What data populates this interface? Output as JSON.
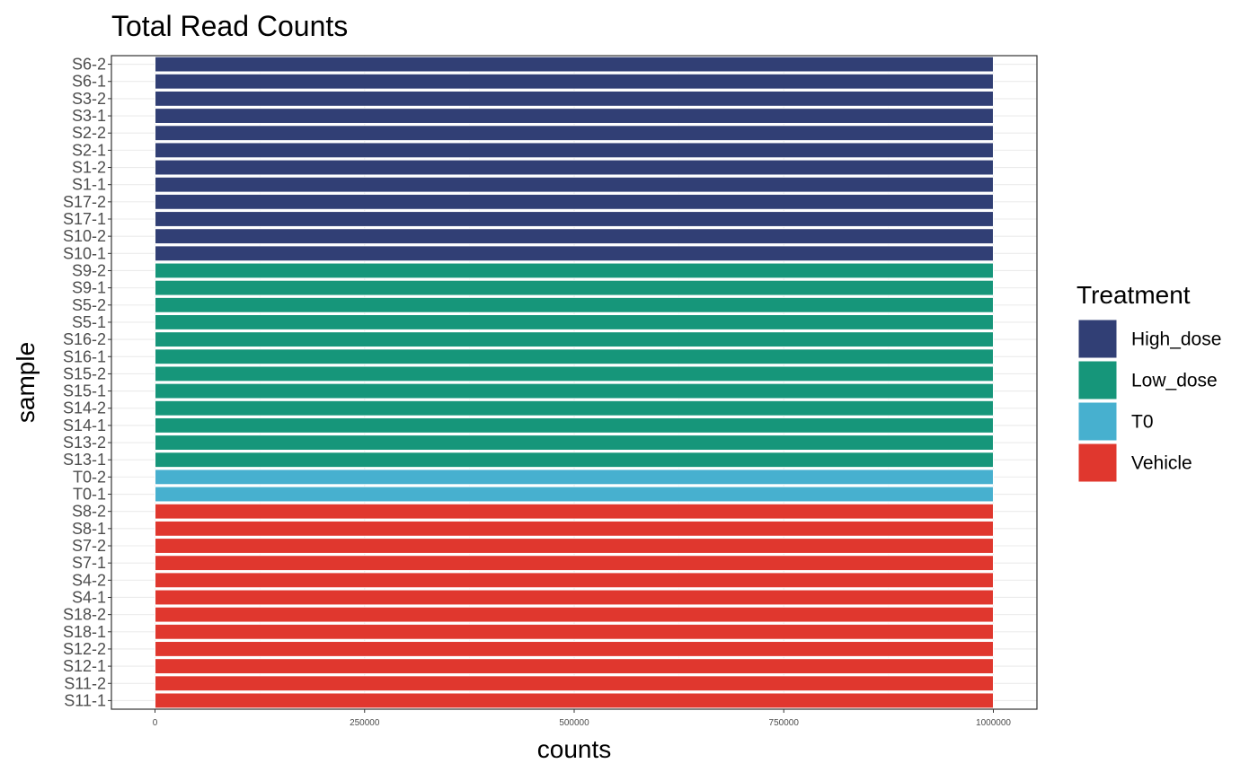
{
  "chart_data": {
    "type": "bar",
    "orientation": "horizontal",
    "title": "Total Read Counts",
    "xlabel": "counts",
    "ylabel": "sample",
    "xlim": [
      -52000,
      1052000
    ],
    "xticks": [
      0,
      250000,
      500000,
      750000,
      1000000
    ],
    "xtick_labels": [
      "0",
      "250000",
      "500000",
      "750000",
      "1000000"
    ],
    "grid": true,
    "legend": {
      "title": "Treatment",
      "position": "right",
      "entries": [
        {
          "label": "High_dose",
          "color": "#313F75"
        },
        {
          "label": "Low_dose",
          "color": "#16967A"
        },
        {
          "label": "T0",
          "color": "#47B0CF"
        },
        {
          "label": "Vehicle",
          "color": "#E0372E"
        }
      ]
    },
    "categories_top_to_bottom": [
      "S6-2",
      "S6-1",
      "S3-2",
      "S3-1",
      "S2-2",
      "S2-1",
      "S1-2",
      "S1-1",
      "S17-2",
      "S17-1",
      "S10-2",
      "S10-1",
      "S9-2",
      "S9-1",
      "S5-2",
      "S5-1",
      "S16-2",
      "S16-1",
      "S15-2",
      "S15-1",
      "S14-2",
      "S14-1",
      "S13-2",
      "S13-1",
      "T0-2",
      "T0-1",
      "S8-2",
      "S8-1",
      "S7-2",
      "S7-1",
      "S4-2",
      "S4-1",
      "S18-2",
      "S18-1",
      "S12-2",
      "S12-1",
      "S11-2",
      "S11-1"
    ],
    "values": [
      1000000,
      1000000,
      1000000,
      1000000,
      1000000,
      1000000,
      1000000,
      1000000,
      1000000,
      1000000,
      1000000,
      1000000,
      1000000,
      1000000,
      1000000,
      1000000,
      1000000,
      1000000,
      1000000,
      1000000,
      1000000,
      1000000,
      1000000,
      1000000,
      1000000,
      1000000,
      1000000,
      1000000,
      1000000,
      1000000,
      1000000,
      1000000,
      1000000,
      1000000,
      1000000,
      1000000,
      1000000,
      1000000
    ],
    "groups": [
      "High_dose",
      "High_dose",
      "High_dose",
      "High_dose",
      "High_dose",
      "High_dose",
      "High_dose",
      "High_dose",
      "High_dose",
      "High_dose",
      "High_dose",
      "High_dose",
      "Low_dose",
      "Low_dose",
      "Low_dose",
      "Low_dose",
      "Low_dose",
      "Low_dose",
      "Low_dose",
      "Low_dose",
      "Low_dose",
      "Low_dose",
      "Low_dose",
      "Low_dose",
      "T0",
      "T0",
      "Vehicle",
      "Vehicle",
      "Vehicle",
      "Vehicle",
      "Vehicle",
      "Vehicle",
      "Vehicle",
      "Vehicle",
      "Vehicle",
      "Vehicle",
      "Vehicle",
      "Vehicle"
    ]
  }
}
